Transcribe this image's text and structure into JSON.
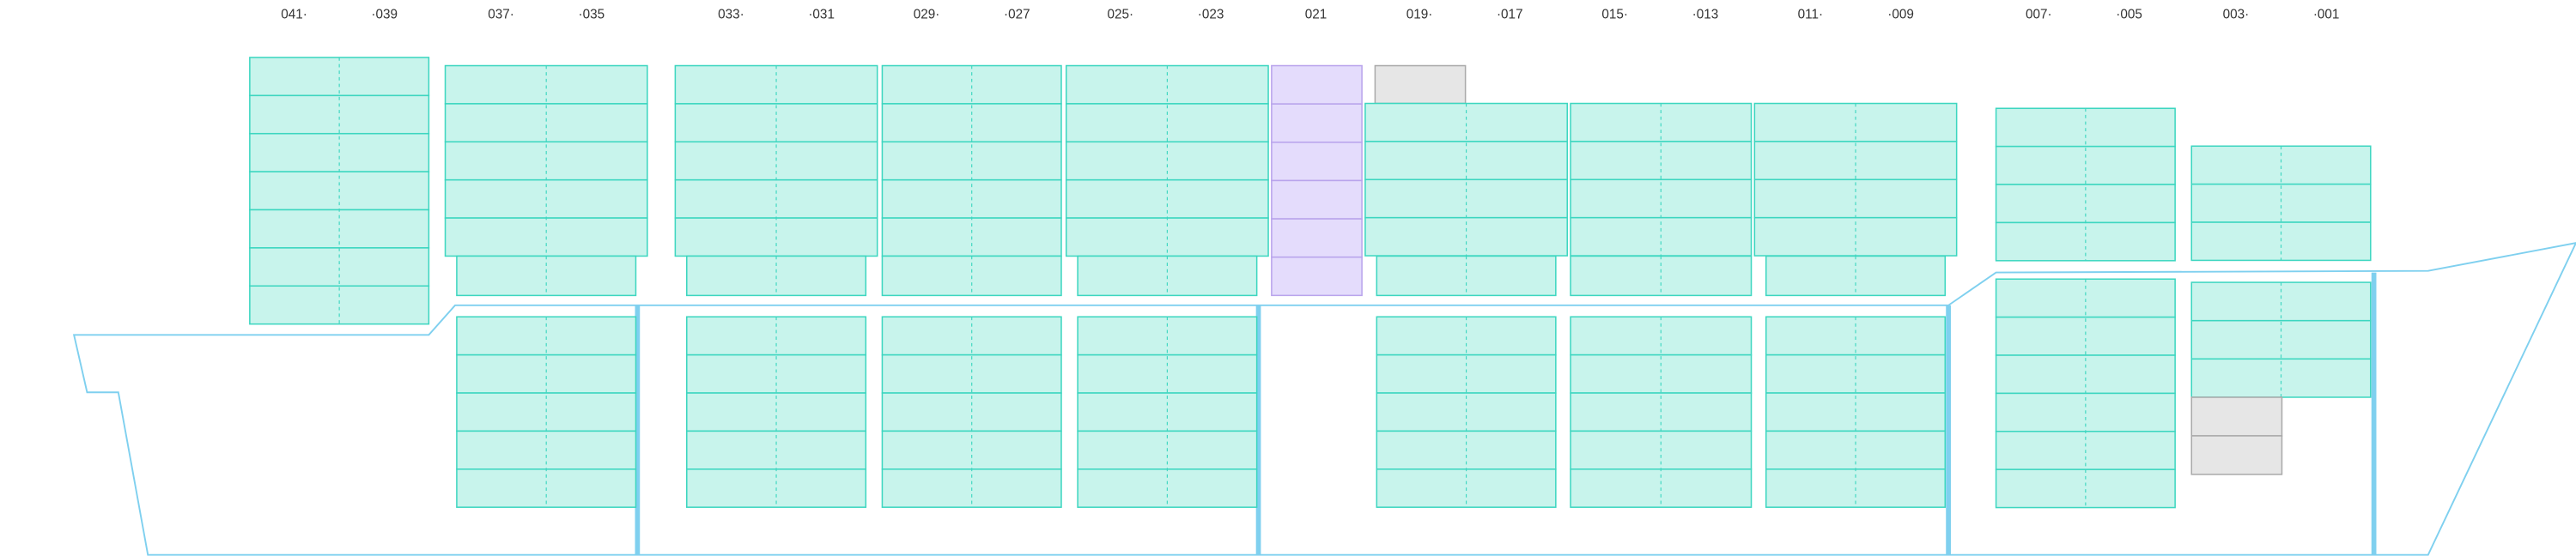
{
  "bay_labels": [
    "041·",
    "·039",
    "037·",
    "·035",
    "033·",
    "·031",
    "029·",
    "·027",
    "025·",
    "·023",
    "021",
    "019·",
    "·017",
    "015·",
    "·013",
    "011·",
    "·009",
    "007·",
    "·005",
    "003·",
    "·001"
  ]
}
